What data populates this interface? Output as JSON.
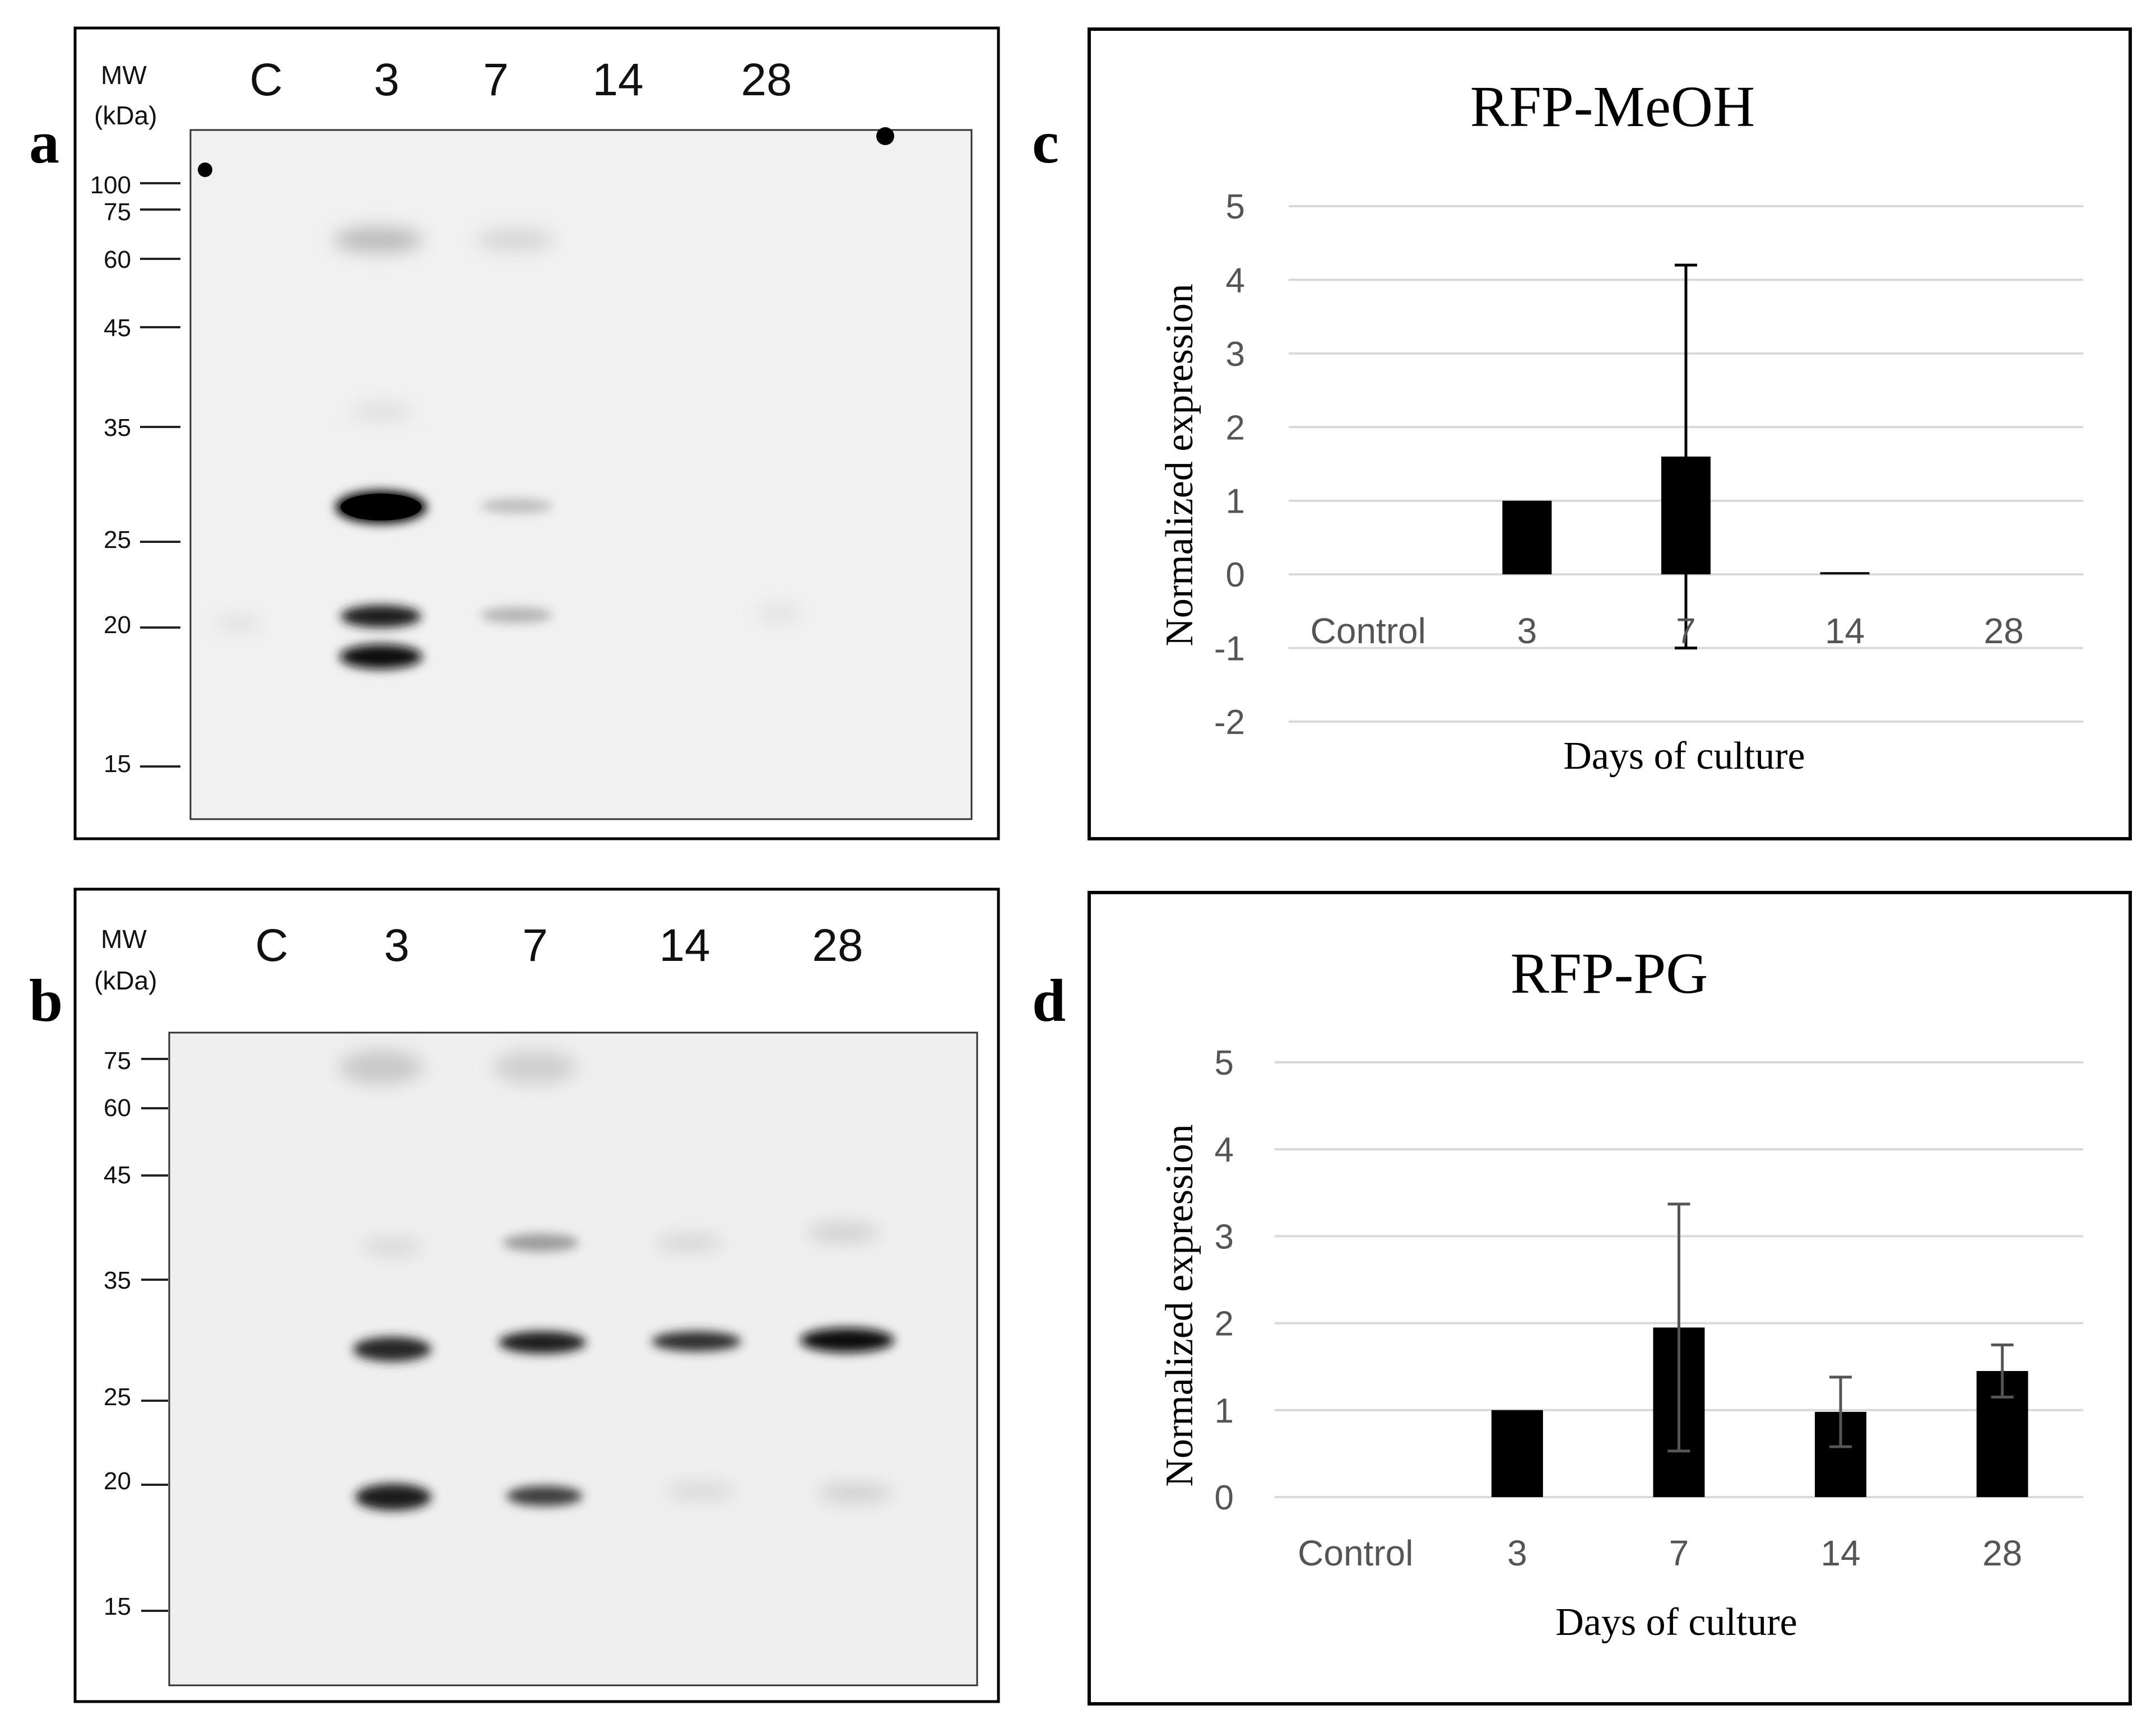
{
  "figure": {
    "panel_letters": [
      "a",
      "b",
      "c",
      "d"
    ]
  },
  "blots": [
    {
      "panel": "a",
      "mw_header": [
        "MW",
        "(kDa)"
      ],
      "lanes": [
        "C",
        "3",
        "7",
        "14",
        "28"
      ],
      "mw_markers": [
        "100",
        "75",
        "60",
        "45",
        "35",
        "25",
        "20",
        "15"
      ]
    },
    {
      "panel": "b",
      "mw_header": [
        "MW",
        "(kDa)"
      ],
      "lanes": [
        "C",
        "3",
        "7",
        "14",
        "28"
      ],
      "mw_markers": [
        "75",
        "60",
        "45",
        "35",
        "25",
        "20",
        "15"
      ]
    }
  ],
  "chart_data": [
    {
      "panel": "c",
      "type": "bar",
      "title": "RFP-MeOH",
      "xlabel": "Days of culture",
      "ylabel": "Normalized expression",
      "categories": [
        "Control",
        "3",
        "7",
        "14",
        "28"
      ],
      "values": [
        0,
        1.0,
        1.6,
        0.03,
        0
      ],
      "error": [
        0,
        0,
        2.6,
        0,
        0
      ],
      "ylim": [
        -2,
        5
      ],
      "yticks": [
        "-2",
        "-1",
        "0",
        "1",
        "2",
        "3",
        "4",
        "5"
      ],
      "grid": true,
      "bar_color": "#000000"
    },
    {
      "panel": "d",
      "type": "bar",
      "title": "RFP-PG",
      "xlabel": "Days of culture",
      "ylabel": "Normalized expression",
      "categories": [
        "Control",
        "3",
        "7",
        "14",
        "28"
      ],
      "values": [
        0,
        1.0,
        1.95,
        0.98,
        1.45
      ],
      "error": [
        0,
        0,
        1.42,
        0.4,
        0.3
      ],
      "ylim": [
        0,
        5
      ],
      "yticks": [
        "0",
        "1",
        "2",
        "3",
        "4",
        "5"
      ],
      "grid": true,
      "bar_color": "#000000"
    }
  ]
}
